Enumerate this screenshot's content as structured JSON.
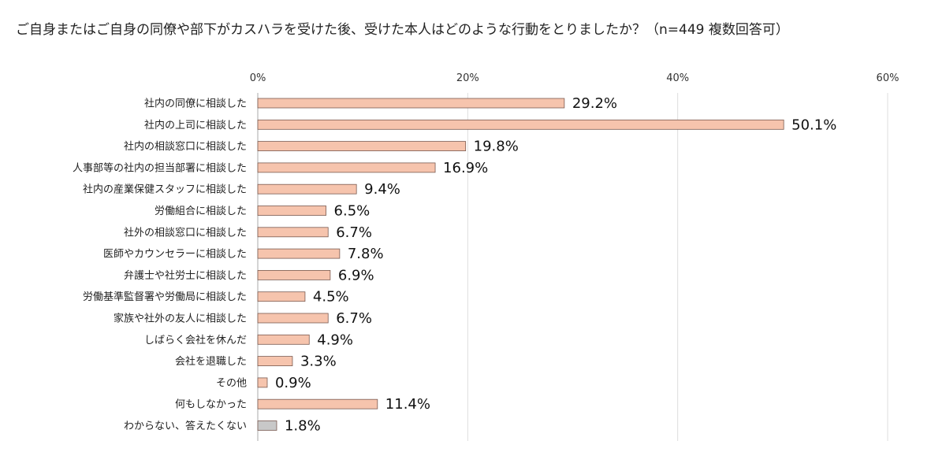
{
  "chart_data": {
    "type": "bar",
    "orientation": "horizontal",
    "title": "ご自身またはご自身の同僚や部下がカスハラを受けた後、受けた本人はどのような行動をとりましたか？（n=449 複数回答可）",
    "xlim": [
      0,
      60
    ],
    "ticks": [
      0,
      20,
      40,
      60
    ],
    "tick_labels": [
      "0%",
      "20%",
      "40%",
      "60%"
    ],
    "grid": true,
    "categories": [
      "社内の同僚に相談した",
      "社内の上司に相談した",
      "社内の相談窓口に相談した",
      "人事部等の社内の担当部署に相談した",
      "社内の産業保健スタッフに相談した",
      "労働組合に相談した",
      "社外の相談窓口に相談した",
      "医師やカウンセラーに相談した",
      "弁護士や社労士に相談した",
      "労働基準監督署や労働局に相談した",
      "家族や社外の友人に相談した",
      "しばらく会社を休んだ",
      "会社を退職した",
      "その他",
      "何もしなかった",
      "わからない、答えたくない"
    ],
    "values": [
      29.2,
      50.1,
      19.8,
      16.9,
      9.4,
      6.5,
      6.7,
      7.8,
      6.9,
      4.5,
      6.7,
      4.9,
      3.3,
      0.9,
      11.4,
      1.8
    ],
    "value_labels": [
      "29.2%",
      "50.1%",
      "19.8%",
      "16.9%",
      "9.4%",
      "6.5%",
      "6.7%",
      "7.8%",
      "6.9%",
      "4.5%",
      "6.7%",
      "4.9%",
      "3.3%",
      "0.9%",
      "11.4%",
      "1.8%"
    ],
    "bar_colors": [
      "#f6c4ad",
      "#f6c4ad",
      "#f6c4ad",
      "#f6c4ad",
      "#f6c4ad",
      "#f6c4ad",
      "#f6c4ad",
      "#f6c4ad",
      "#f6c4ad",
      "#f6c4ad",
      "#f6c4ad",
      "#f6c4ad",
      "#f6c4ad",
      "#f6c4ad",
      "#f6c4ad",
      "#c8c8c8"
    ],
    "bar_stroke": "#7a5a50"
  }
}
